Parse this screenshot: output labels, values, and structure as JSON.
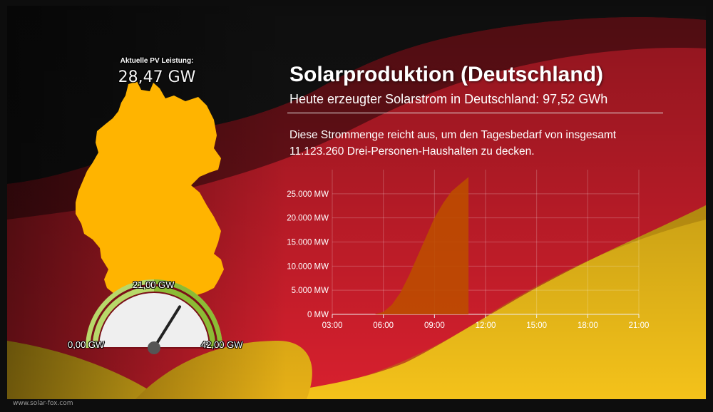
{
  "footer": {
    "url": "www.solar-fox.com"
  },
  "pv": {
    "label": "Aktuelle PV Leistung:",
    "value": "28,47 GW"
  },
  "header": {
    "title": "Solarproduktion (Deutschland)",
    "subtitle": "Heute erzeugter Solarstrom in Deutschland: 97,52 GWh"
  },
  "description": "Diese Strommenge reicht aus, um den Tagesbedarf von insgesamt 11.123.260 Drei-Personen-Haushalten zu decken.",
  "gauge": {
    "min_label": "0,00 GW",
    "mid_label": "21,00 GW",
    "max_label": "42,00 GW",
    "min": 0,
    "max": 42,
    "value": 28.47
  },
  "colors": {
    "flag_black": "#1a1a1a",
    "flag_red": "#d8202e",
    "flag_gold": "#f4c21a",
    "map_fill": "#ffb400",
    "area_fill": "#bd4d00"
  },
  "chart_data": {
    "type": "area",
    "x_tick_labels": [
      "03:00",
      "06:00",
      "09:00",
      "12:00",
      "15:00",
      "18:00",
      "21:00"
    ],
    "y_tick_labels": [
      "0 MW",
      "5.000 MW",
      "10.000 MW",
      "15.000 MW",
      "20.000 MW",
      "25.000 MW"
    ],
    "xlim": [
      3,
      21
    ],
    "ylim": [
      0,
      30000
    ],
    "x": [
      5.5,
      6.0,
      6.5,
      7.0,
      7.5,
      8.0,
      8.5,
      9.0,
      9.5,
      10.0,
      10.5,
      11.0
    ],
    "values": [
      0,
      500,
      2000,
      4500,
      8000,
      12000,
      16000,
      20000,
      23000,
      25500,
      27000,
      28470
    ],
    "grid": true
  }
}
